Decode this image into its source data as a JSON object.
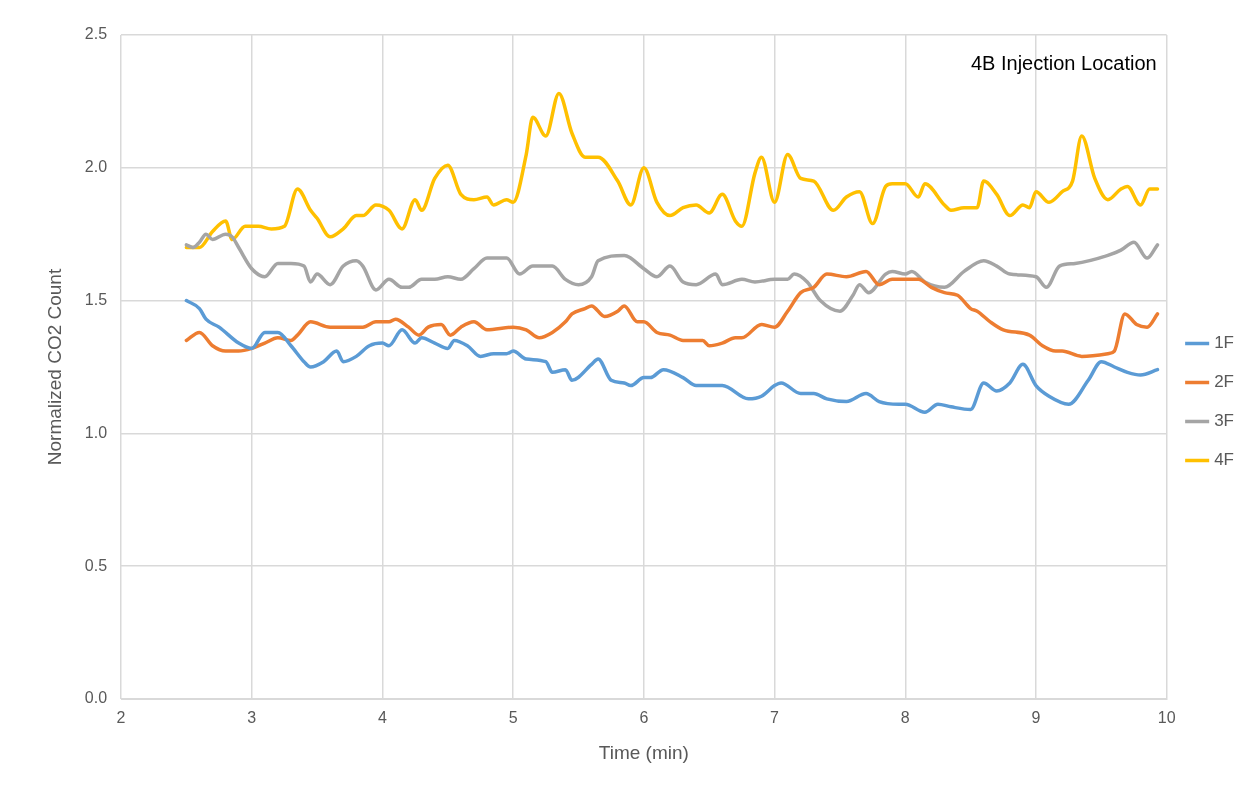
{
  "chart_data": {
    "type": "line",
    "title": "4B Injection Location",
    "xlabel": "Time (min)",
    "ylabel": "Normalized CO2 Count",
    "xlim": [
      2,
      10
    ],
    "xticks": [
      2,
      3,
      4,
      5,
      6,
      7,
      8,
      9,
      10
    ],
    "ylim": [
      0,
      2.5
    ],
    "yticks": [
      {
        "value": 0,
        "label": "0.0"
      },
      {
        "value": 0.5,
        "label": "0.5"
      },
      {
        "value": 1,
        "label": "1.0"
      },
      {
        "value": 1.5,
        "label": "1.5"
      },
      {
        "value": 2,
        "label": "2.0"
      },
      {
        "value": 2.5,
        "label": "2.5"
      }
    ],
    "grid": true,
    "legend": "right",
    "marker": "none",
    "line_style": "solid",
    "series": [
      {
        "name": "1F",
        "color": "#5b9bd5",
        "x": [
          2.5,
          2.6,
          2.65,
          2.75,
          2.9,
          3.0,
          3.1,
          3.2,
          3.3,
          3.4,
          3.45,
          3.55,
          3.65,
          3.7,
          3.8,
          3.9,
          4.0,
          4.05,
          4.15,
          4.25,
          4.3,
          4.4,
          4.5,
          4.55,
          4.65,
          4.75,
          4.85,
          4.95,
          5.0,
          5.1,
          5.25,
          5.3,
          5.4,
          5.45,
          5.6,
          5.65,
          5.75,
          5.85,
          5.9,
          6.0,
          6.05,
          6.15,
          6.3,
          6.4,
          6.55,
          6.6,
          6.8,
          6.9,
          7.0,
          7.05,
          7.2,
          7.3,
          7.4,
          7.55,
          7.7,
          7.8,
          7.95,
          8.0,
          8.15,
          8.25,
          8.35,
          8.5,
          8.6,
          8.7,
          8.8,
          8.9,
          9.0,
          9.1,
          9.25,
          9.4,
          9.5,
          9.6,
          9.7,
          9.8,
          9.93
        ],
        "values": [
          1.5,
          1.47,
          1.43,
          1.4,
          1.34,
          1.32,
          1.38,
          1.38,
          1.33,
          1.27,
          1.25,
          1.27,
          1.31,
          1.27,
          1.29,
          1.33,
          1.34,
          1.33,
          1.39,
          1.34,
          1.36,
          1.34,
          1.32,
          1.35,
          1.33,
          1.29,
          1.3,
          1.3,
          1.31,
          1.28,
          1.27,
          1.23,
          1.24,
          1.2,
          1.26,
          1.28,
          1.2,
          1.19,
          1.18,
          1.21,
          1.21,
          1.24,
          1.21,
          1.18,
          1.18,
          1.18,
          1.13,
          1.14,
          1.18,
          1.19,
          1.15,
          1.15,
          1.13,
          1.12,
          1.15,
          1.12,
          1.11,
          1.11,
          1.08,
          1.11,
          1.1,
          1.09,
          1.19,
          1.16,
          1.19,
          1.26,
          1.18,
          1.14,
          1.11,
          1.2,
          1.27,
          1.25,
          1.23,
          1.22,
          1.24
        ]
      },
      {
        "name": "2F",
        "color": "#ed7d31",
        "x": [
          2.5,
          2.6,
          2.7,
          2.8,
          2.9,
          3.0,
          3.1,
          3.2,
          3.3,
          3.35,
          3.45,
          3.6,
          3.75,
          3.85,
          3.95,
          4.05,
          4.1,
          4.2,
          4.28,
          4.35,
          4.45,
          4.52,
          4.6,
          4.7,
          4.8,
          5.0,
          5.1,
          5.2,
          5.3,
          5.4,
          5.45,
          5.55,
          5.6,
          5.7,
          5.8,
          5.85,
          5.95,
          6.0,
          6.1,
          6.2,
          6.3,
          6.45,
          6.5,
          6.6,
          6.7,
          6.75,
          6.9,
          7.0,
          7.1,
          7.2,
          7.3,
          7.4,
          7.55,
          7.7,
          7.8,
          7.9,
          8.0,
          8.1,
          8.2,
          8.3,
          8.4,
          8.5,
          8.55,
          8.65,
          8.75,
          8.95,
          9.05,
          9.15,
          9.2,
          9.35,
          9.55,
          9.6,
          9.68,
          9.77,
          9.85,
          9.93
        ],
        "values": [
          1.35,
          1.38,
          1.33,
          1.31,
          1.31,
          1.32,
          1.34,
          1.36,
          1.35,
          1.37,
          1.42,
          1.4,
          1.4,
          1.4,
          1.42,
          1.42,
          1.43,
          1.4,
          1.37,
          1.4,
          1.41,
          1.37,
          1.4,
          1.42,
          1.39,
          1.4,
          1.39,
          1.36,
          1.38,
          1.42,
          1.45,
          1.47,
          1.48,
          1.44,
          1.46,
          1.48,
          1.42,
          1.42,
          1.38,
          1.37,
          1.35,
          1.35,
          1.33,
          1.34,
          1.36,
          1.36,
          1.41,
          1.4,
          1.46,
          1.53,
          1.55,
          1.6,
          1.59,
          1.61,
          1.56,
          1.58,
          1.58,
          1.58,
          1.55,
          1.53,
          1.52,
          1.47,
          1.46,
          1.42,
          1.39,
          1.37,
          1.33,
          1.31,
          1.31,
          1.29,
          1.3,
          1.31,
          1.45,
          1.41,
          1.4,
          1.45
        ]
      },
      {
        "name": "3F",
        "color": "#a5a5a5",
        "x": [
          2.5,
          2.55,
          2.6,
          2.65,
          2.7,
          2.8,
          2.85,
          2.9,
          3.0,
          3.1,
          3.2,
          3.3,
          3.4,
          3.45,
          3.5,
          3.6,
          3.7,
          3.8,
          3.85,
          3.95,
          4.05,
          4.15,
          4.2,
          4.3,
          4.4,
          4.5,
          4.6,
          4.7,
          4.8,
          4.95,
          5.05,
          5.15,
          5.3,
          5.4,
          5.5,
          5.6,
          5.65,
          5.85,
          6.0,
          6.1,
          6.2,
          6.3,
          6.4,
          6.55,
          6.6,
          6.75,
          6.85,
          7.0,
          7.1,
          7.15,
          7.25,
          7.35,
          7.5,
          7.6,
          7.65,
          7.72,
          7.85,
          7.9,
          8.0,
          8.05,
          8.15,
          8.3,
          8.45,
          8.6,
          8.7,
          8.8,
          9.0,
          9.08,
          9.18,
          9.3,
          9.55,
          9.65,
          9.75,
          9.85,
          9.93
        ],
        "values": [
          1.71,
          1.7,
          1.72,
          1.75,
          1.73,
          1.75,
          1.74,
          1.7,
          1.62,
          1.59,
          1.64,
          1.64,
          1.63,
          1.57,
          1.6,
          1.56,
          1.63,
          1.65,
          1.63,
          1.54,
          1.58,
          1.55,
          1.55,
          1.58,
          1.58,
          1.59,
          1.58,
          1.62,
          1.66,
          1.66,
          1.6,
          1.63,
          1.63,
          1.58,
          1.56,
          1.59,
          1.65,
          1.67,
          1.62,
          1.59,
          1.63,
          1.57,
          1.56,
          1.6,
          1.56,
          1.58,
          1.57,
          1.58,
          1.58,
          1.6,
          1.57,
          1.5,
          1.46,
          1.52,
          1.56,
          1.53,
          1.6,
          1.61,
          1.6,
          1.61,
          1.57,
          1.55,
          1.61,
          1.65,
          1.63,
          1.6,
          1.59,
          1.55,
          1.63,
          1.64,
          1.67,
          1.69,
          1.72,
          1.66,
          1.71
        ]
      },
      {
        "name": "4F",
        "color": "#ffc000",
        "x": [
          2.5,
          2.6,
          2.7,
          2.8,
          2.85,
          2.95,
          3.05,
          3.15,
          3.25,
          3.35,
          3.45,
          3.5,
          3.6,
          3.7,
          3.8,
          3.85,
          3.95,
          4.05,
          4.15,
          4.25,
          4.3,
          4.4,
          4.5,
          4.6,
          4.7,
          4.8,
          4.85,
          4.95,
          5.0,
          5.1,
          5.15,
          5.25,
          5.35,
          5.45,
          5.55,
          5.65,
          5.8,
          5.9,
          6.0,
          6.1,
          6.2,
          6.3,
          6.4,
          6.5,
          6.6,
          6.7,
          6.75,
          6.85,
          6.9,
          7.0,
          7.1,
          7.2,
          7.3,
          7.45,
          7.55,
          7.65,
          7.75,
          7.85,
          7.9,
          8.0,
          8.1,
          8.15,
          8.3,
          8.35,
          8.45,
          8.55,
          8.6,
          8.7,
          8.8,
          8.9,
          8.95,
          9.0,
          9.1,
          9.2,
          9.28,
          9.35,
          9.45,
          9.55,
          9.65,
          9.7,
          9.8,
          9.87,
          9.93
        ],
        "values": [
          1.7,
          1.7,
          1.76,
          1.8,
          1.73,
          1.78,
          1.78,
          1.77,
          1.78,
          1.92,
          1.84,
          1.81,
          1.74,
          1.77,
          1.82,
          1.82,
          1.86,
          1.84,
          1.77,
          1.88,
          1.84,
          1.96,
          2.01,
          1.9,
          1.88,
          1.89,
          1.86,
          1.88,
          1.87,
          2.05,
          2.19,
          2.12,
          2.28,
          2.13,
          2.04,
          2.04,
          1.95,
          1.86,
          2.0,
          1.87,
          1.82,
          1.85,
          1.86,
          1.83,
          1.9,
          1.8,
          1.78,
          1.98,
          2.04,
          1.87,
          2.05,
          1.96,
          1.95,
          1.84,
          1.89,
          1.91,
          1.79,
          1.93,
          1.94,
          1.94,
          1.89,
          1.94,
          1.86,
          1.84,
          1.85,
          1.85,
          1.95,
          1.9,
          1.82,
          1.86,
          1.85,
          1.91,
          1.87,
          1.91,
          1.95,
          2.12,
          1.96,
          1.88,
          1.92,
          1.93,
          1.86,
          1.92,
          1.92
        ]
      }
    ]
  }
}
